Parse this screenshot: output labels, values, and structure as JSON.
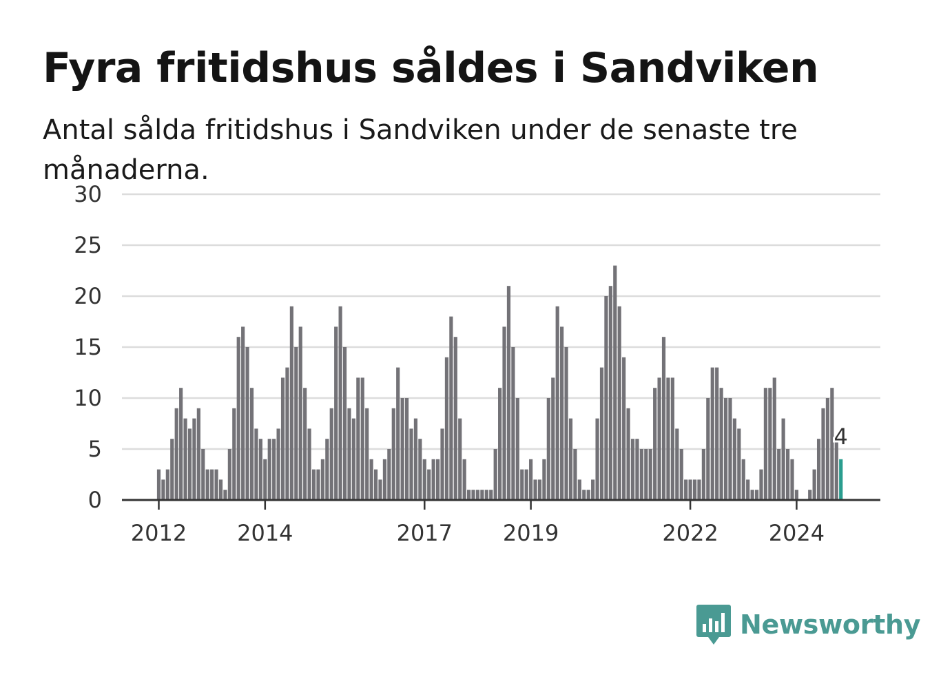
{
  "title": "Fyra fritidshus såldes i Sandviken",
  "subtitle": "Antal sålda fritidshus i Sandviken under de senaste tre månaderna.",
  "brand": "Newsworthy",
  "colors": {
    "bar": "#737277",
    "highlight": "#2a9d8f",
    "grid": "#dcdcdc",
    "axis": "#333333",
    "brand": "#4a9a93"
  },
  "chart_data": {
    "type": "bar",
    "title": "Fyra fritidshus såldes i Sandviken",
    "subtitle": "Antal sålda fritidshus i Sandviken under de senaste tre månaderna.",
    "xlabel": "",
    "ylabel": "",
    "ylim": [
      0,
      30
    ],
    "yticks": [
      0,
      5,
      10,
      15,
      20,
      25,
      30
    ],
    "grid": true,
    "x_tick_labels": [
      "2012",
      "2014",
      "2017",
      "2019",
      "2022",
      "2024"
    ],
    "start": "2012-01",
    "frequency": "monthly",
    "values": [
      3,
      2,
      3,
      6,
      9,
      11,
      8,
      7,
      8,
      9,
      5,
      3,
      3,
      3,
      2,
      1,
      5,
      9,
      16,
      17,
      15,
      11,
      7,
      6,
      4,
      6,
      6,
      7,
      12,
      13,
      19,
      15,
      17,
      11,
      7,
      3,
      3,
      4,
      6,
      9,
      17,
      19,
      15,
      9,
      8,
      12,
      12,
      9,
      4,
      3,
      2,
      4,
      5,
      9,
      13,
      10,
      10,
      7,
      8,
      6,
      4,
      3,
      4,
      4,
      7,
      14,
      18,
      16,
      8,
      4,
      1,
      1,
      1,
      1,
      1,
      1,
      5,
      11,
      17,
      21,
      15,
      10,
      3,
      3,
      4,
      2,
      2,
      4,
      10,
      12,
      19,
      17,
      15,
      8,
      5,
      2,
      1,
      1,
      2,
      8,
      13,
      20,
      21,
      23,
      19,
      14,
      9,
      6,
      6,
      5,
      5,
      5,
      11,
      12,
      16,
      12,
      12,
      7,
      5,
      2,
      2,
      2,
      2,
      5,
      10,
      13,
      13,
      11,
      10,
      10,
      8,
      7,
      4,
      2,
      1,
      1,
      3,
      11,
      11,
      12,
      5,
      8,
      5,
      4,
      1,
      0,
      0,
      1,
      3,
      6,
      9,
      10,
      11,
      6,
      4
    ],
    "highlight_last": true,
    "annotation": "4"
  }
}
